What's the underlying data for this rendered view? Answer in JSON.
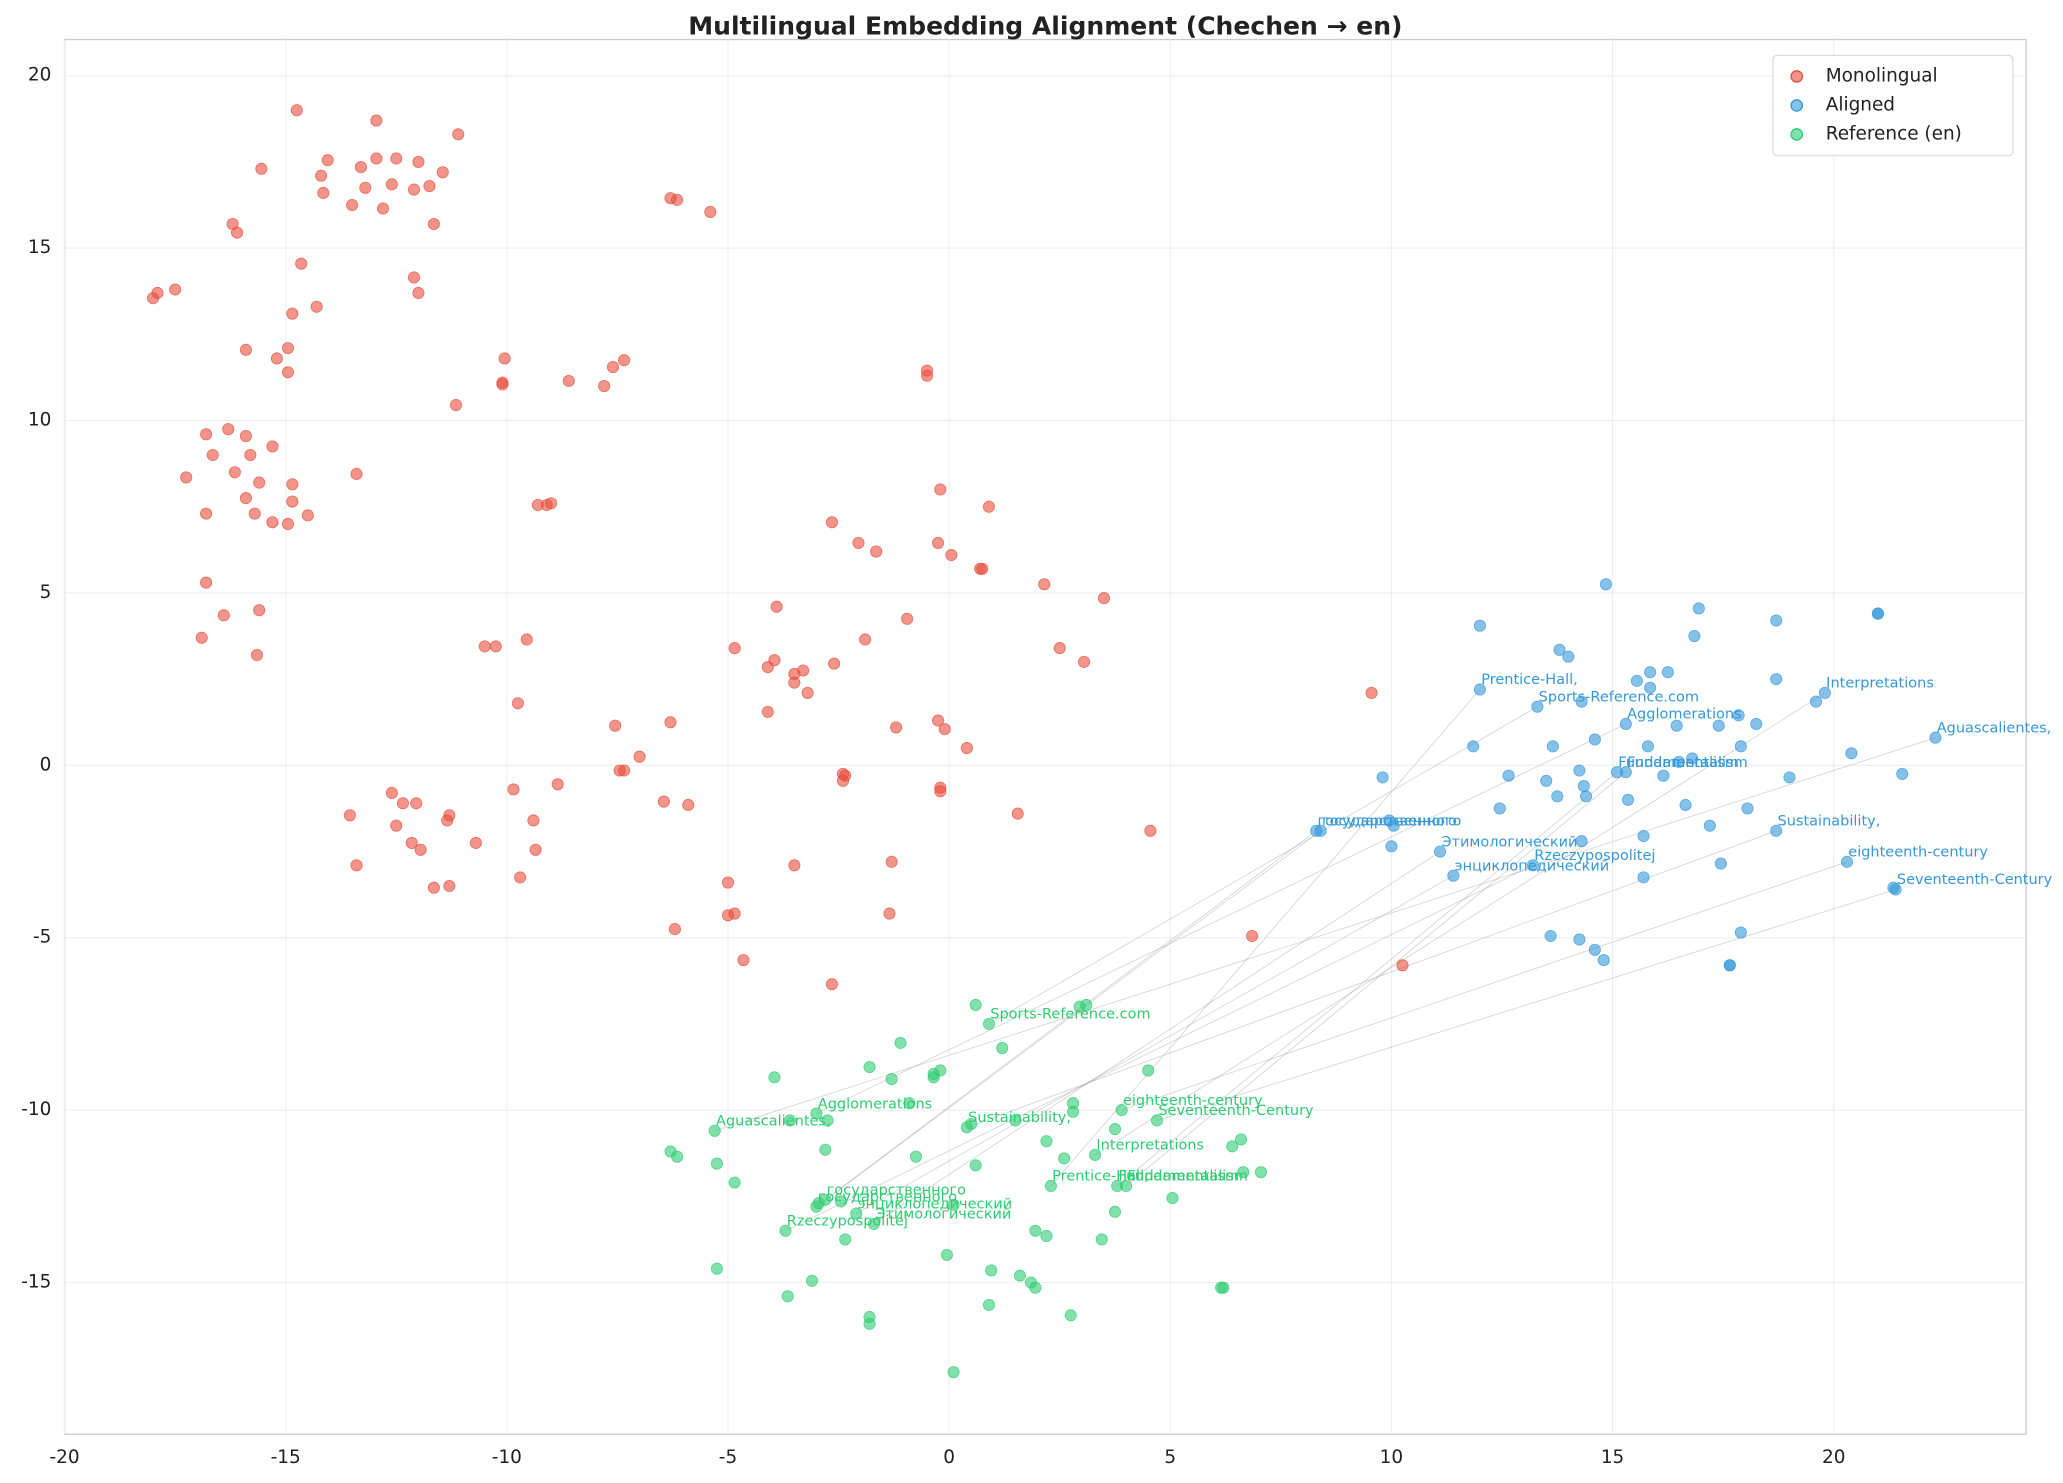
{
  "chart_data": {
    "type": "scatter",
    "title": "Multilingual Embedding Alignment (Chechen → en)",
    "xlim": [
      -20,
      24.35
    ],
    "ylim": [
      -19.4,
      21.05
    ],
    "xticks": [
      -20,
      -15,
      -10,
      -5,
      0,
      5,
      10,
      15,
      20
    ],
    "yticks": [
      -15,
      -10,
      -5,
      0,
      5,
      10,
      15,
      20
    ],
    "grid": true,
    "legend": "upper right",
    "series": [
      {
        "name": "Monolingual",
        "color": "#e74c3c",
        "x": [
          -14.75,
          -12.95,
          -11.1,
          -15.55,
          -14.05,
          -14.2,
          -13.3,
          -12.95,
          -12.5,
          -12.0,
          -11.45,
          -14.15,
          -13.2,
          -13.5,
          -12.8,
          -12.6,
          -12.1,
          -11.75,
          -11.65,
          -16.2,
          -16.1,
          -14.65,
          -12.1,
          -12.0,
          -17.5,
          -17.9,
          -18.0,
          -14.3,
          -14.85,
          -15.9,
          -14.95,
          -15.2,
          -14.95,
          -11.15,
          -10.05,
          -10.1,
          -10.1,
          -8.6,
          -7.8,
          -7.6,
          -7.35,
          -0.5,
          -0.5,
          -6.3,
          -6.15,
          -5.4,
          -16.8,
          -16.3,
          -15.9,
          -15.3,
          -16.65,
          -15.8,
          -17.25,
          -16.15,
          -15.6,
          -14.85,
          -13.4,
          -15.9,
          -14.85,
          -16.8,
          -15.7,
          -15.3,
          -14.95,
          -14.5,
          -9.3,
          -9.1,
          -9.0,
          -0.2,
          0.9,
          -16.8,
          -16.4,
          -15.6,
          -16.9,
          -15.65,
          -10.5,
          -10.25,
          -9.55,
          -9.75,
          -2.65,
          -2.05,
          -1.65,
          -0.25,
          0.05,
          0.7,
          0.75,
          2.15,
          3.5,
          -3.9,
          -0.95,
          -4.85,
          -1.9,
          -3.95,
          -4.1,
          -3.5,
          -3.3,
          -3.5,
          -2.6,
          -3.2,
          2.5,
          3.05,
          9.55,
          -4.1,
          -7.55,
          -6.3,
          -1.2,
          -0.25,
          -0.1,
          0.4,
          -7.0,
          -7.35,
          -7.45,
          -2.4,
          -2.35,
          -2.4,
          -0.2,
          -0.2,
          -9.85,
          -8.85,
          -12.6,
          -12.35,
          -12.05,
          -6.45,
          -5.9,
          -13.55,
          -11.3,
          -11.35,
          -12.5,
          -9.4,
          1.55,
          4.55,
          -12.15,
          -11.95,
          -10.7,
          -9.35,
          -13.4,
          -3.5,
          -1.3,
          -9.7,
          -11.65,
          -11.3,
          -5.0,
          -5.0,
          -4.85,
          -1.35,
          -6.2,
          -4.65,
          -2.65,
          6.85,
          10.25
        ],
        "y": [
          19.0,
          18.7,
          18.3,
          17.3,
          17.55,
          17.1,
          17.35,
          17.6,
          17.6,
          17.5,
          17.2,
          16.6,
          16.75,
          16.25,
          16.15,
          16.85,
          16.7,
          16.8,
          15.7,
          15.7,
          15.45,
          14.55,
          14.15,
          13.7,
          13.8,
          13.7,
          13.55,
          13.3,
          13.1,
          12.05,
          12.1,
          11.8,
          11.4,
          10.45,
          11.8,
          11.1,
          11.05,
          11.15,
          11.0,
          11.55,
          11.75,
          11.45,
          11.3,
          16.45,
          16.4,
          16.05,
          9.6,
          9.75,
          9.55,
          9.25,
          9.0,
          9.0,
          8.35,
          8.5,
          8.2,
          8.15,
          8.45,
          7.75,
          7.65,
          7.3,
          7.3,
          7.05,
          7.0,
          7.25,
          7.55,
          7.55,
          7.6,
          8.0,
          7.5,
          5.3,
          4.35,
          4.5,
          3.7,
          3.2,
          3.45,
          3.45,
          3.65,
          1.8,
          7.05,
          6.45,
          6.2,
          6.45,
          6.1,
          5.7,
          5.7,
          5.25,
          4.85,
          4.6,
          4.25,
          3.4,
          3.65,
          3.05,
          2.85,
          2.65,
          2.75,
          2.4,
          2.95,
          2.1,
          3.4,
          3.0,
          2.1,
          1.55,
          1.15,
          1.25,
          1.1,
          1.3,
          1.05,
          0.5,
          0.25,
          -0.15,
          -0.15,
          -0.25,
          -0.3,
          -0.45,
          -0.65,
          -0.75,
          -0.7,
          -0.55,
          -0.8,
          -1.1,
          -1.1,
          -1.05,
          -1.15,
          -1.45,
          -1.45,
          -1.6,
          -1.75,
          -1.6,
          -1.4,
          -1.9,
          -2.25,
          -2.45,
          -2.25,
          -2.45,
          -2.9,
          -2.9,
          -2.8,
          -3.25,
          -3.55,
          -3.5,
          -3.4,
          -4.35,
          -4.3,
          -4.3,
          -4.75,
          -5.65,
          -6.35,
          -4.95,
          -5.8
        ]
      },
      {
        "name": "Aligned",
        "color": "#3498db",
        "x": [
          12.0,
          13.3,
          19.8,
          15.3,
          22.3,
          15.1,
          15.3,
          8.3,
          8.4,
          11.1,
          13.2,
          11.4,
          18.7,
          20.3,
          21.4,
          12.0,
          14.85,
          16.95,
          18.7,
          21.0,
          21.0,
          13.8,
          14.0,
          16.85,
          15.55,
          15.85,
          16.25,
          15.85,
          18.7,
          14.3,
          16.45,
          17.4,
          17.85,
          18.25,
          19.6,
          11.85,
          13.65,
          14.6,
          15.8,
          17.9,
          20.4,
          16.5,
          16.8,
          9.8,
          12.65,
          14.25,
          16.15,
          19.0,
          21.55,
          13.5,
          14.35,
          13.75,
          14.4,
          15.35,
          12.45,
          16.65,
          18.05,
          9.95,
          10.05,
          17.2,
          15.7,
          14.3,
          10.0,
          17.45,
          15.7,
          13.6,
          14.25,
          14.6,
          14.8,
          17.9,
          17.65,
          17.65,
          21.35
        ],
        "y": [
          2.2,
          1.7,
          2.1,
          1.2,
          0.8,
          -0.2,
          -0.2,
          -1.9,
          -1.9,
          -2.5,
          -2.9,
          -3.2,
          -1.9,
          -2.8,
          -3.6,
          4.05,
          5.25,
          4.55,
          4.2,
          4.4,
          4.4,
          3.35,
          3.15,
          3.75,
          2.45,
          2.7,
          2.7,
          2.25,
          2.5,
          1.85,
          1.15,
          1.15,
          1.45,
          1.2,
          1.85,
          0.55,
          0.55,
          0.75,
          0.55,
          0.55,
          0.35,
          0.1,
          0.2,
          -0.35,
          -0.3,
          -0.15,
          -0.3,
          -0.35,
          -0.25,
          -0.45,
          -0.6,
          -0.9,
          -0.9,
          -1.0,
          -1.25,
          -1.15,
          -1.25,
          -1.6,
          -1.75,
          -1.75,
          -2.05,
          -2.2,
          -2.35,
          -2.85,
          -3.25,
          -4.95,
          -5.05,
          -5.35,
          -5.65,
          -4.85,
          -5.8,
          -5.8,
          -3.55
        ],
        "labels": [
          "Prentice-Hall,",
          "Sports-Reference.com",
          "Interpretations",
          "Agglomerations",
          "Aguascalientes,",
          "Fundamentalism",
          "Fundamentalism",
          "государственного",
          "государственного",
          "Этимологический",
          "Rzeczypospolitej",
          "энциклопедический",
          "Sustainability,",
          "eighteenth-century",
          "Seventeenth-Century",
          null,
          null,
          null,
          null,
          null,
          null,
          null,
          null,
          null,
          null,
          null,
          null,
          null,
          null,
          null,
          null,
          null,
          null,
          null,
          null,
          null,
          null,
          null,
          null,
          null,
          null,
          null,
          null,
          null,
          null,
          null,
          null,
          null,
          null,
          null,
          null,
          null,
          null,
          null,
          null,
          null,
          null,
          null,
          null,
          null,
          null,
          null,
          null,
          null,
          null,
          null,
          null,
          null,
          null,
          null,
          null,
          null,
          null
        ]
      },
      {
        "name": "Reference (en)",
        "color": "#2ecc71",
        "x": [
          2.3,
          0.9,
          3.3,
          -3.0,
          -5.3,
          3.8,
          4.0,
          -2.8,
          -3.0,
          -1.7,
          -3.7,
          -2.1,
          0.4,
          3.9,
          4.7,
          0.6,
          3.1,
          2.95,
          -1.1,
          1.2,
          -3.95,
          -1.8,
          -1.3,
          -0.35,
          -0.2,
          -0.35,
          4.5,
          -0.9,
          2.8,
          2.8,
          -2.75,
          -3.6,
          1.5,
          0.5,
          3.75,
          2.2,
          -6.15,
          -2.8,
          -0.75,
          2.6,
          0.6,
          -6.3,
          -5.25,
          -4.85,
          6.4,
          6.6,
          6.65,
          7.05,
          5.05,
          3.75,
          -2.95,
          -2.45,
          -2.35,
          0.1,
          1.95,
          2.2,
          3.45,
          -0.05,
          -5.25,
          -3.1,
          -3.65,
          0.95,
          1.6,
          1.85,
          1.95,
          6.15,
          6.2,
          0.9,
          2.75,
          -1.8,
          -1.8,
          0.1
        ],
        "y": [
          -12.2,
          -7.5,
          -11.3,
          -10.1,
          -10.6,
          -12.2,
          -12.2,
          -12.6,
          -12.8,
          -13.3,
          -13.5,
          -13.0,
          -10.5,
          -10.0,
          -10.3,
          -6.95,
          -6.95,
          -7.0,
          -8.05,
          -8.2,
          -9.05,
          -8.75,
          -9.1,
          -8.95,
          -8.85,
          -9.05,
          -8.85,
          -9.8,
          -9.8,
          -10.05,
          -10.3,
          -10.3,
          -10.3,
          -10.4,
          -10.55,
          -10.9,
          -11.35,
          -11.15,
          -11.35,
          -11.4,
          -11.6,
          -11.2,
          -11.55,
          -12.1,
          -11.05,
          -10.85,
          -11.8,
          -11.8,
          -12.55,
          -12.95,
          -12.7,
          -12.65,
          -13.75,
          -12.75,
          -13.5,
          -13.65,
          -13.75,
          -14.2,
          -14.6,
          -14.95,
          -15.4,
          -14.65,
          -14.8,
          -15.0,
          -15.15,
          -15.15,
          -15.15,
          -15.65,
          -15.95,
          -16.0,
          -16.2,
          -17.6
        ],
        "labels": [
          "Prentice-Hall,",
          "Sports-Reference.com",
          "Interpretations",
          "Agglomerations",
          "Aguascalientes,",
          "Fundamentalism",
          "Fundamentalism",
          "государственного",
          "государственного",
          "Этимологический",
          "Rzeczypospolitej",
          "энциклопедический",
          "Sustainability,",
          "eighteenth-century",
          "Seventeenth-Century",
          null,
          null,
          null,
          null,
          null,
          null,
          null,
          null,
          null,
          null,
          null,
          null,
          null,
          null,
          null,
          null,
          null,
          null,
          null,
          null,
          null,
          null,
          null,
          null,
          null,
          null,
          null,
          null,
          null,
          null,
          null,
          null,
          null,
          null,
          null,
          null,
          null,
          null,
          null,
          null,
          null,
          null,
          null,
          null,
          null,
          null,
          null,
          null,
          null,
          null,
          null,
          null,
          null,
          null,
          null,
          null,
          null
        ]
      }
    ]
  }
}
